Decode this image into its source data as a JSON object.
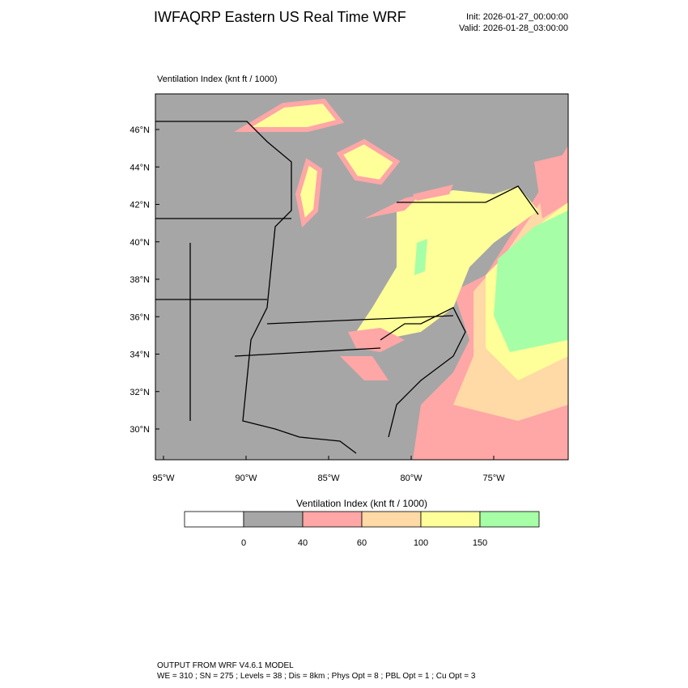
{
  "header": {
    "title": "IWFAQRP Eastern US Real Time WRF",
    "init": "Init: 2026-01-27_00:00:00",
    "valid": "Valid: 2026-01-28_03:00:00"
  },
  "map": {
    "title": "Ventilation Index   (knt ft / 1000)",
    "lat_labels": [
      "46°N",
      "44°N",
      "42°N",
      "40°N",
      "38°N",
      "36°N",
      "34°N",
      "32°N",
      "30°N"
    ],
    "lon_labels": [
      "95°W",
      "90°W",
      "85°W",
      "80°W",
      "75°W"
    ]
  },
  "colorbar": {
    "title": "Ventilation Index  (knt ft / 1000)",
    "ticks": [
      0,
      40,
      60,
      100,
      150
    ],
    "colors": [
      "#ffffff",
      "#a6a6a6",
      "#ffa6a6",
      "#ffd9a6",
      "#ffff99",
      "#a6ffa6"
    ]
  },
  "footer": {
    "line1": "OUTPUT FROM WRF V4.6.1 MODEL",
    "line2": "WE = 310 ; SN = 275 ; Levels = 38 ; Dis = 8km ; Phys Opt = 8 ; PBL Opt = 1 ; Cu Opt = 3"
  }
}
